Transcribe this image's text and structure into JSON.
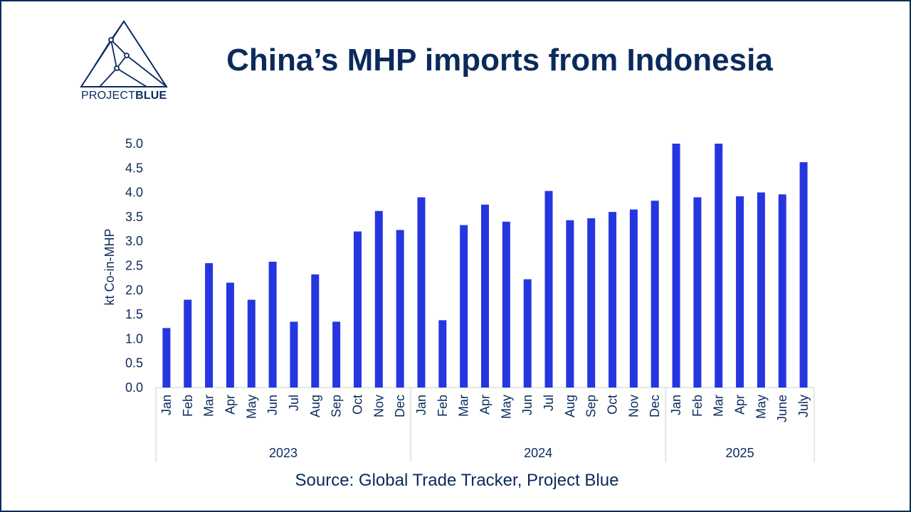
{
  "title": "China’s MHP imports from Indonesia",
  "source": "Source: Global Trade Tracker, Project Blue",
  "logo": {
    "text_regular": "PROJECT",
    "text_bold": "BLUE",
    "icon": "triangle-network-logo-icon"
  },
  "colors": {
    "bar": "#2536e0",
    "text": "#0b2a5c",
    "axis": "#cfcfcf",
    "frame": "#0b2a5c"
  },
  "chart_data": {
    "type": "bar",
    "ylabel": "kt Co-in-MHP",
    "xlabel": "",
    "ylim": [
      0,
      5
    ],
    "yticks": [
      "0.0",
      "0.5",
      "1.0",
      "1.5",
      "2.0",
      "2.5",
      "3.0",
      "3.5",
      "4.0",
      "4.5",
      "5.0"
    ],
    "grid": false,
    "groups": [
      {
        "year": "2023",
        "categories": [
          "Jan",
          "Feb",
          "Mar",
          "Apr",
          "May",
          "Jun",
          "Jul",
          "Aug",
          "Sep",
          "Oct",
          "Nov",
          "Dec"
        ],
        "values": [
          1.22,
          1.8,
          2.55,
          2.15,
          1.8,
          2.58,
          1.35,
          2.32,
          1.35,
          3.2,
          3.62,
          3.23
        ]
      },
      {
        "year": "2024",
        "categories": [
          "Jan",
          "Feb",
          "Mar",
          "Apr",
          "May",
          "Jun",
          "Jul",
          "Aug",
          "Sep",
          "Oct",
          "Nov",
          "Dec"
        ],
        "values": [
          3.9,
          1.38,
          3.33,
          3.75,
          3.4,
          2.22,
          4.03,
          3.43,
          3.47,
          3.6,
          3.65,
          3.83
        ]
      },
      {
        "year": "2025",
        "categories": [
          "Jan",
          "Feb",
          "Mar",
          "Apr",
          "May",
          "June",
          "July"
        ],
        "values": [
          5.0,
          3.9,
          5.0,
          3.92,
          4.0,
          3.96,
          4.62
        ]
      }
    ]
  }
}
